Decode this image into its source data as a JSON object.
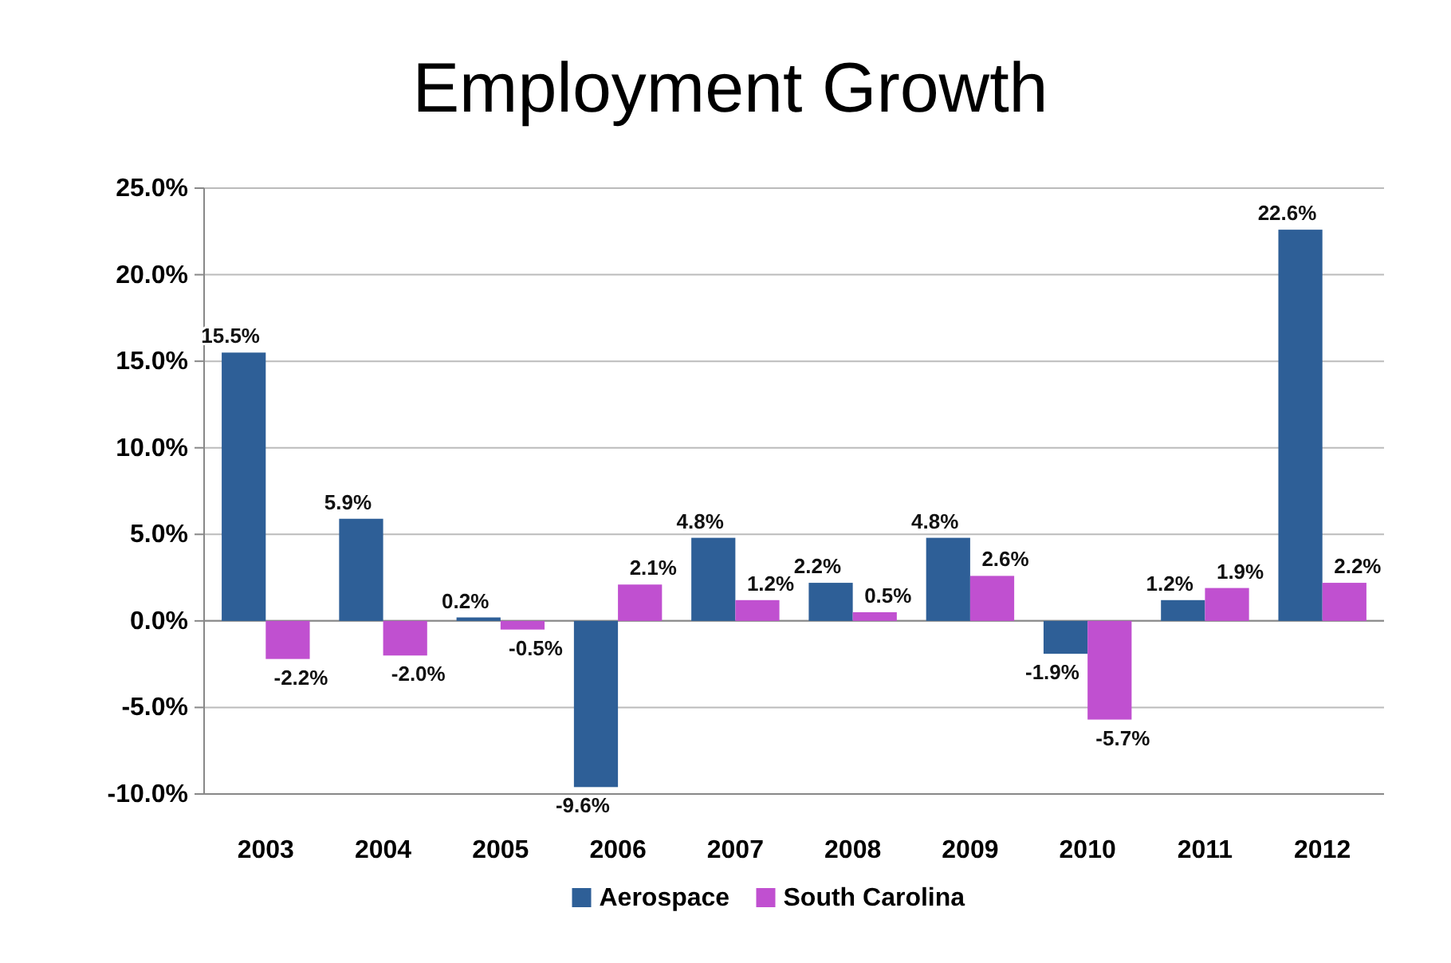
{
  "chart_data": {
    "type": "bar",
    "title": "Employment Growth",
    "categories": [
      "2003",
      "2004",
      "2005",
      "2006",
      "2007",
      "2008",
      "2009",
      "2010",
      "2011",
      "2012"
    ],
    "series": [
      {
        "name": "Aerospace",
        "color": "#2e5f97",
        "values": [
          15.5,
          5.9,
          0.2,
          -9.6,
          4.8,
          2.2,
          4.8,
          -1.9,
          1.2,
          22.6
        ],
        "value_labels": [
          "15.5%",
          "5.9%",
          "0.2%",
          "-9.6%",
          "4.8%",
          "2.2%",
          "4.8%",
          "-1.9%",
          "1.2%",
          "22.6%"
        ]
      },
      {
        "name": "South Carolina",
        "color": "#c050d0",
        "values": [
          -2.2,
          -2.0,
          -0.5,
          2.1,
          1.2,
          0.5,
          2.6,
          -5.7,
          1.9,
          2.2
        ],
        "value_labels": [
          "-2.2%",
          "-2.0%",
          "-0.5%",
          "2.1%",
          "1.2%",
          "0.5%",
          "2.6%",
          "-5.7%",
          "1.9%",
          "2.2%"
        ]
      }
    ],
    "ylim": [
      -10,
      25
    ],
    "yticks": [
      {
        "value": -10,
        "label": "-10.0%"
      },
      {
        "value": -5,
        "label": "-5.0%"
      },
      {
        "value": 0,
        "label": "0.0%"
      },
      {
        "value": 5,
        "label": "5.0%"
      },
      {
        "value": 10,
        "label": "10.0%"
      },
      {
        "value": 15,
        "label": "15.0%"
      },
      {
        "value": 20,
        "label": "20.0%"
      },
      {
        "value": 25,
        "label": "25.0%"
      }
    ],
    "grid": "y",
    "legend": "bottom"
  }
}
